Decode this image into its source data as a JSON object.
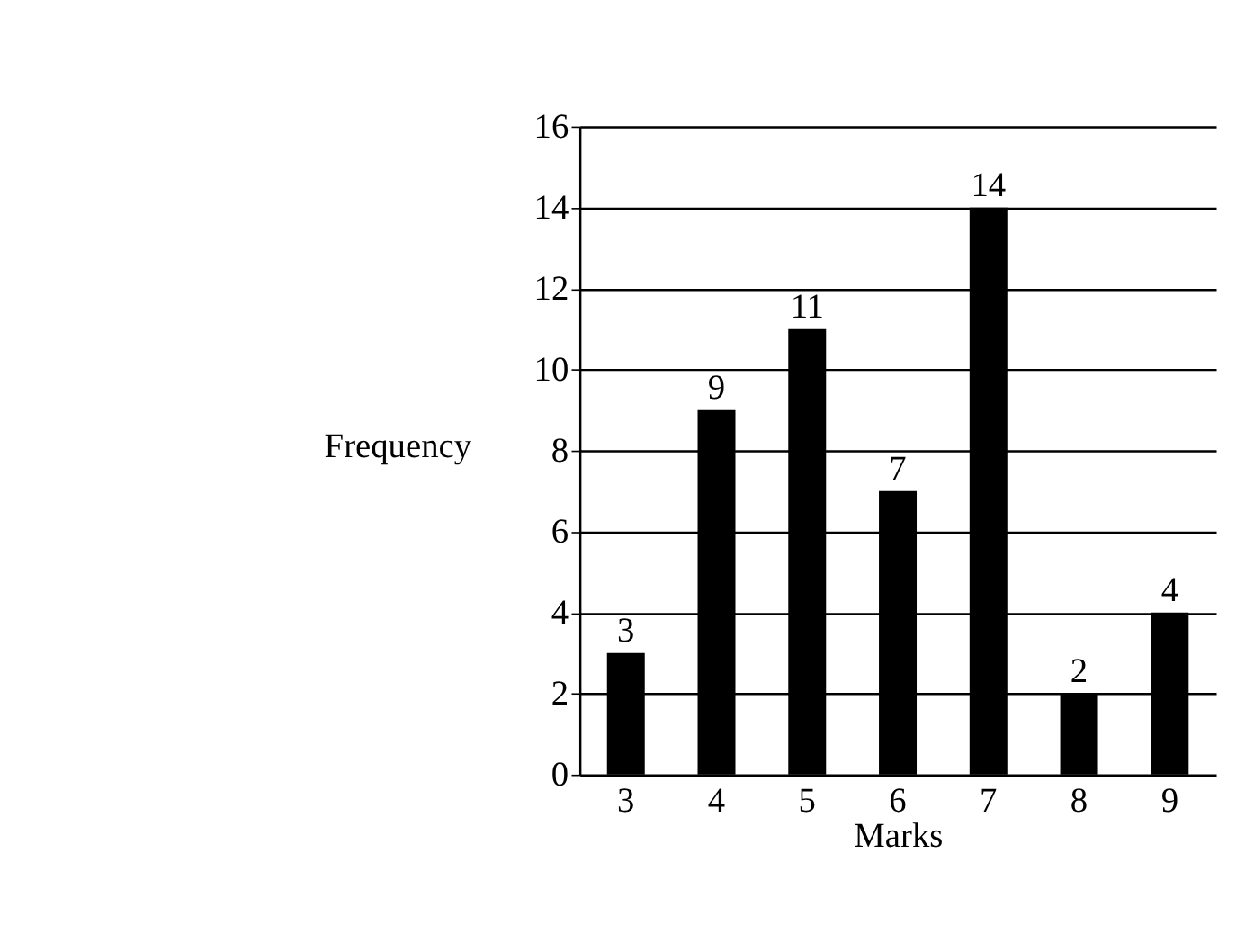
{
  "chart_data": {
    "type": "bar",
    "xlabel": "Marks",
    "ylabel": "Frequency",
    "categories": [
      "3",
      "4",
      "5",
      "6",
      "7",
      "8",
      "9"
    ],
    "values": [
      3,
      9,
      11,
      7,
      14,
      2,
      4
    ],
    "color": "#000000",
    "ylim": [
      0,
      16
    ],
    "yticks": [
      0,
      2,
      4,
      6,
      8,
      10,
      12,
      14,
      16
    ],
    "grid": "y",
    "data_labels": true
  }
}
